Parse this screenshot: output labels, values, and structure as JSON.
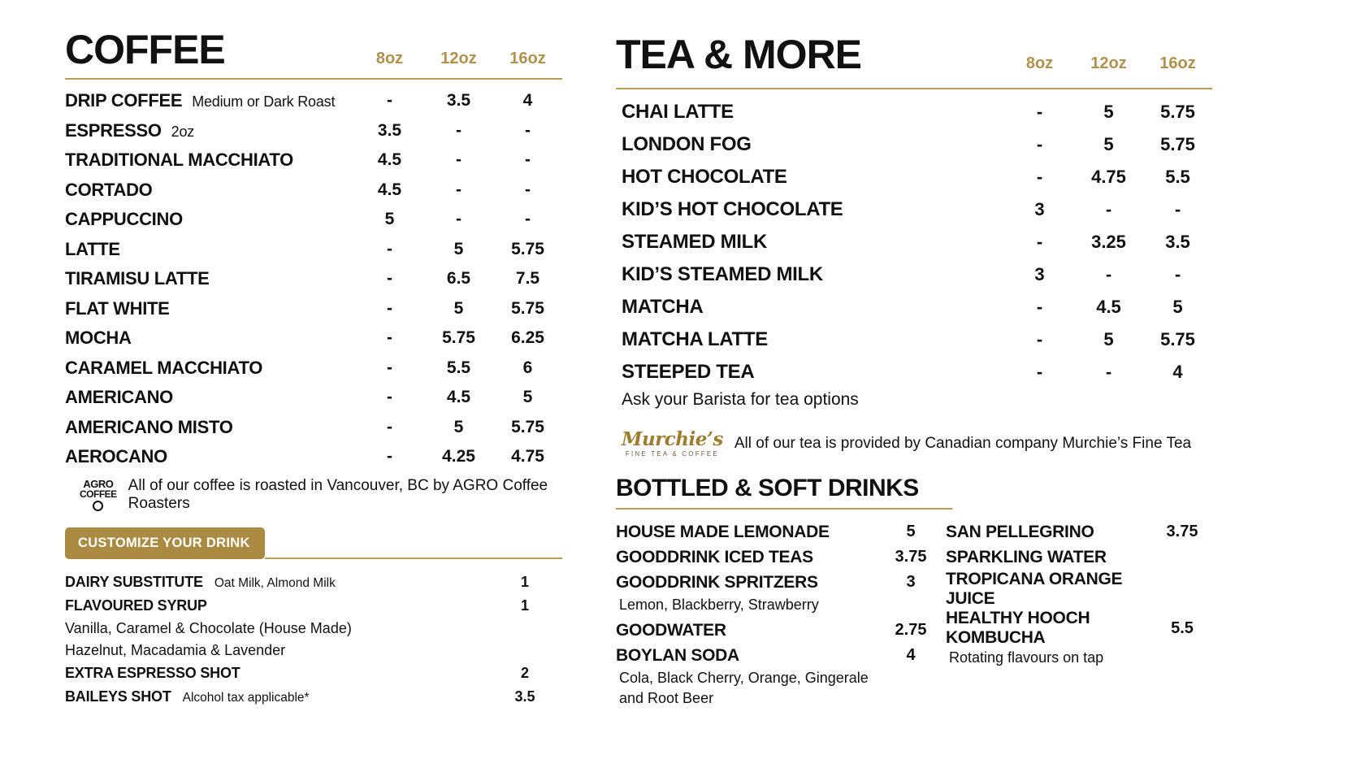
{
  "colors": {
    "gold": "#b3914a",
    "line": "#bf9b55",
    "badge": "#ab8a41",
    "text": "#111111"
  },
  "coffee": {
    "title": "COFFEE",
    "sizes": [
      "8oz",
      "12oz",
      "16oz"
    ],
    "items": [
      {
        "name": "DRIP COFFEE",
        "note": "Medium or Dark Roast",
        "prices": [
          "-",
          "3.5",
          "4"
        ]
      },
      {
        "name": "ESPRESSO",
        "note": "2oz",
        "prices": [
          "3.5",
          "-",
          "-"
        ]
      },
      {
        "name": "TRADITIONAL MACCHIATO",
        "note": "",
        "prices": [
          "4.5",
          "-",
          "-"
        ]
      },
      {
        "name": "CORTADO",
        "note": "",
        "prices": [
          "4.5",
          "-",
          "-"
        ]
      },
      {
        "name": "CAPPUCCINO",
        "note": "",
        "prices": [
          "5",
          "-",
          "-"
        ]
      },
      {
        "name": "LATTE",
        "note": "",
        "prices": [
          "-",
          "5",
          "5.75"
        ]
      },
      {
        "name": "TIRAMISU LATTE",
        "note": "",
        "prices": [
          "-",
          "6.5",
          "7.5"
        ]
      },
      {
        "name": "FLAT WHITE",
        "note": "",
        "prices": [
          "-",
          "5",
          "5.75"
        ]
      },
      {
        "name": "MOCHA",
        "note": "",
        "prices": [
          "-",
          "5.75",
          "6.25"
        ]
      },
      {
        "name": "CARAMEL MACCHIATO",
        "note": "",
        "prices": [
          "-",
          "5.5",
          "6"
        ]
      },
      {
        "name": "AMERICANO",
        "note": "",
        "prices": [
          "-",
          "4.5",
          "5"
        ]
      },
      {
        "name": "AMERICANO MISTO",
        "note": "",
        "prices": [
          "-",
          "5",
          "5.75"
        ]
      },
      {
        "name": "AEROCANO",
        "note": "",
        "prices": [
          "-",
          "4.25",
          "4.75"
        ]
      }
    ],
    "logo_line1": "AGRO",
    "logo_line2": "COFFEE",
    "footnote": "All of our coffee is roasted in Vancouver, BC by AGRO Coffee Roasters"
  },
  "customize": {
    "title": "CUSTOMIZE YOUR DRINK",
    "items": [
      {
        "name": "DAIRY SUBSTITUTE",
        "note": "Oat Milk, Almond Milk",
        "price": "1",
        "sub": []
      },
      {
        "name": "FLAVOURED SYRUP",
        "note": "",
        "price": "1",
        "sub": [
          "Vanilla, Caramel & Chocolate (House Made)",
          "Hazelnut, Macadamia & Lavender"
        ]
      },
      {
        "name": "EXTRA ESPRESSO SHOT",
        "note": "",
        "price": "2",
        "sub": []
      },
      {
        "name": "BAILEYS SHOT",
        "note": "Alcohol tax applicable*",
        "price": "3.5",
        "sub": []
      }
    ]
  },
  "tea": {
    "title": "TEA & MORE",
    "sizes": [
      "8oz",
      "12oz",
      "16oz"
    ],
    "items": [
      {
        "name": "CHAI LATTE",
        "note": "",
        "prices": [
          "-",
          "5",
          "5.75"
        ],
        "sub": []
      },
      {
        "name": "LONDON FOG",
        "note": "",
        "prices": [
          "-",
          "5",
          "5.75"
        ],
        "sub": []
      },
      {
        "name": "HOT CHOCOLATE",
        "note": "",
        "prices": [
          "-",
          "4.75",
          "5.5"
        ],
        "sub": []
      },
      {
        "name": "KID’S HOT CHOCOLATE",
        "note": "",
        "prices": [
          "3",
          "-",
          "-"
        ],
        "sub": []
      },
      {
        "name": "STEAMED MILK",
        "note": "",
        "prices": [
          "-",
          "3.25",
          "3.5"
        ],
        "sub": []
      },
      {
        "name": "KID’S STEAMED MILK",
        "note": "",
        "prices": [
          "3",
          "-",
          "-"
        ],
        "sub": []
      },
      {
        "name": "MATCHA",
        "note": "",
        "prices": [
          "-",
          "4.5",
          "5"
        ],
        "sub": []
      },
      {
        "name": "MATCHA LATTE",
        "note": "",
        "prices": [
          "-",
          "5",
          "5.75"
        ],
        "sub": []
      },
      {
        "name": "STEEPED TEA",
        "note": "",
        "prices": [
          "-",
          "-",
          "4"
        ],
        "sub": [
          "Ask your Barista for tea options"
        ]
      }
    ],
    "logo_script": "Murchie’s",
    "logo_tagline": "FINE TEA & COFFEE",
    "footnote": "All of our tea is provided by Canadian company Murchie’s Fine Tea"
  },
  "bottled": {
    "title": "BOTTLED & SOFT DRINKS",
    "left_items": [
      {
        "name": "HOUSE MADE LEMONADE",
        "price": "5",
        "sub": []
      },
      {
        "name": "GOODDRINK ICED TEAS",
        "price": "3.75",
        "sub": []
      },
      {
        "name": "GOODDRINK SPRITZERS",
        "price": "3",
        "sub": [
          "Lemon, Blackberry, Strawberry"
        ]
      },
      {
        "name": "GOODWATER",
        "price": "2.75",
        "sub": []
      },
      {
        "name": "BOYLAN SODA",
        "price": "4",
        "sub": [
          "Cola, Black Cherry, Orange, Gingerale and Root Beer"
        ]
      }
    ],
    "right_items": [
      {
        "name": "SAN PELLEGRINO",
        "price": "3.75",
        "sub": []
      },
      {
        "name": "SPARKLING WATER",
        "price": "",
        "sub": []
      },
      {
        "name": "TROPICANA ORANGE JUICE",
        "price": "",
        "sub": []
      },
      {
        "name": "HEALTHY HOOCH KOMBUCHA",
        "price": "5.5",
        "sub": [
          "Rotating flavours on tap"
        ]
      }
    ]
  }
}
